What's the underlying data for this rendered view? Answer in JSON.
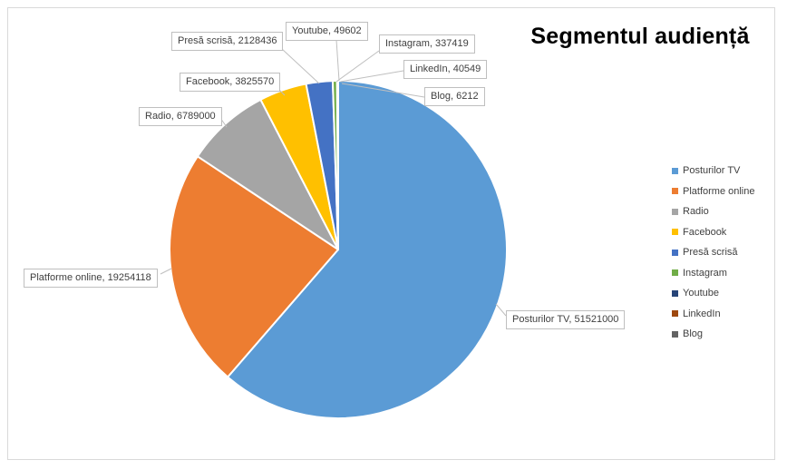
{
  "window": {
    "background": "#FFFFFF",
    "frame_border_color": "#D9D9D9"
  },
  "styles": {
    "leader_line_color": "#BFBFBF",
    "label_border_color": "#BFBFBF",
    "label_text_color": "#404040",
    "slice_gap_color": "#FFFFFF",
    "title_color": "#000000"
  },
  "chart_data": {
    "type": "pie",
    "title": "Segmentul audiență",
    "legend_position": "right",
    "direction": "clockwise",
    "start_angle_deg": 0,
    "categories": [
      "Posturilor TV",
      "Platforme online",
      "Radio",
      "Facebook",
      "Presă scrisă",
      "Instagram",
      "Youtube",
      "LinkedIn",
      "Blog"
    ],
    "values": [
      51521000,
      19254118,
      6789000,
      3825570,
      2128436,
      337419,
      49602,
      40549,
      6212
    ],
    "total": 83951906,
    "colors": [
      "#5B9BD5",
      "#ED7D31",
      "#A5A5A5",
      "#FFC000",
      "#4472C4",
      "#70AD47",
      "#264478",
      "#9E480E",
      "#636363"
    ],
    "label_format": "category, value",
    "label_texts": [
      "Posturilor TV, 51521000",
      "Platforme online, 19254118",
      "Radio, 6789000",
      "Facebook, 3825570",
      "Presă scrisă, 2128436",
      "Instagram, 337419",
      "Youtube, 49602",
      "LinkedIn, 40549",
      "Blog, 6212"
    ]
  }
}
